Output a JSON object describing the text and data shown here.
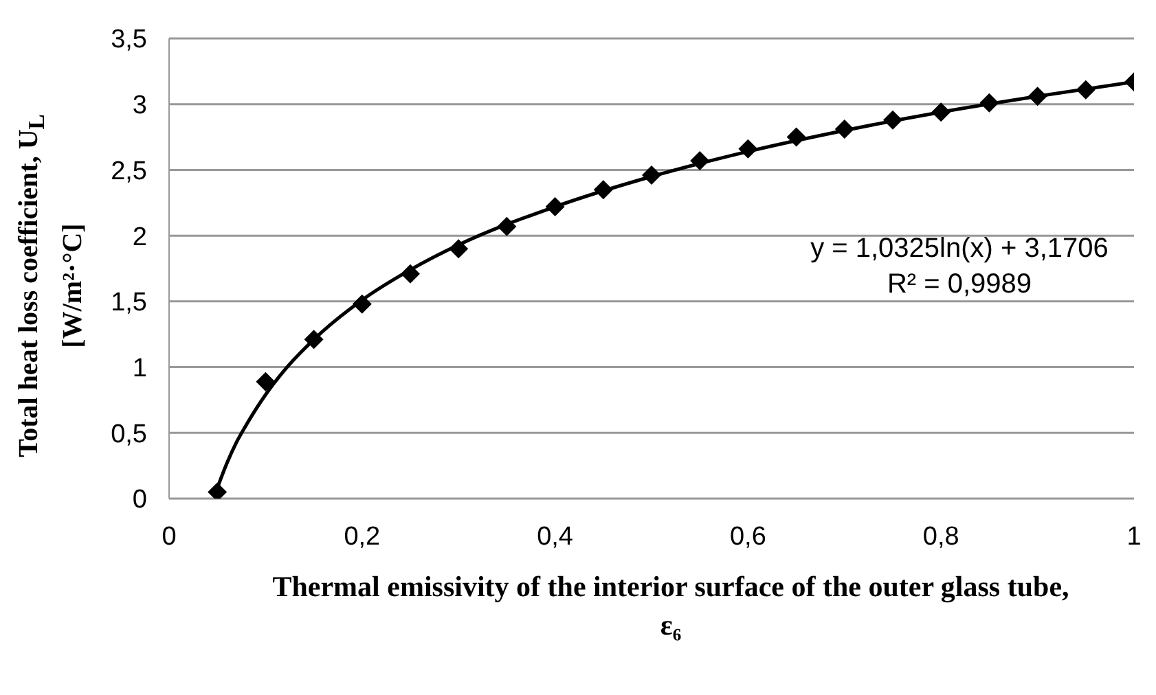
{
  "chart_data": {
    "type": "scatter",
    "xlabel": "Thermal emissivity of the interior surface of the outer glass tube, ε₆",
    "ylabel": "Total heat loss coefficient, U$_{L}$ [W/m²·°C]",
    "annotations": [
      "y = 1,0325ln(x) + 3,1706",
      "R² = 0,9989"
    ],
    "xlim": [
      0,
      1
    ],
    "xticks": [
      0,
      {
        "value": 0.2,
        "label": "0,2"
      },
      {
        "value": 0.4,
        "label": "0,4"
      },
      {
        "value": 0.6,
        "label": "0,6"
      },
      {
        "value": 0.8,
        "label": "0,8"
      },
      1
    ],
    "ylim": [
      0,
      3.5
    ],
    "yticks": [
      0,
      {
        "value": 0.5,
        "label": "0,5"
      },
      1,
      {
        "value": 1.5,
        "label": "1,5"
      },
      2,
      {
        "value": 2.5,
        "label": "2,5"
      },
      3,
      {
        "value": 3.5,
        "label": "3,5"
      }
    ],
    "grid": "y",
    "legend": false,
    "series": [
      {
        "marker": "diamond",
        "color": "#000000",
        "x": [
          0.05,
          0.1,
          0.15,
          0.2,
          0.25,
          0.3,
          0.35,
          0.4,
          0.45,
          0.5,
          0.55,
          0.6,
          0.65,
          0.7,
          0.75,
          0.8,
          0.85,
          0.9,
          0.95,
          1
        ],
        "values": [
          0.05,
          0.89,
          1.21,
          1.48,
          1.71,
          1.9,
          2.07,
          2.22,
          2.35,
          2.46,
          2.57,
          2.66,
          2.75,
          2.81,
          2.88,
          2.94,
          3.01,
          3.06,
          3.11,
          3.17
        ]
      },
      {
        "type": "line",
        "marker": "none",
        "line_style": "solid",
        "color": "#000000",
        "x": [
          0.05,
          0.06,
          0.07,
          0.08,
          0.1,
          0.12,
          0.15,
          0.2,
          0.25,
          0.3,
          0.4,
          0.5,
          0.6,
          0.7,
          0.8,
          0.9,
          1
        ],
        "values": [
          0.08,
          0.27,
          0.43,
          0.56,
          0.79,
          0.98,
          1.21,
          1.51,
          1.74,
          1.93,
          2.22,
          2.45,
          2.64,
          2.8,
          2.94,
          3.06,
          3.17
        ]
      }
    ]
  }
}
